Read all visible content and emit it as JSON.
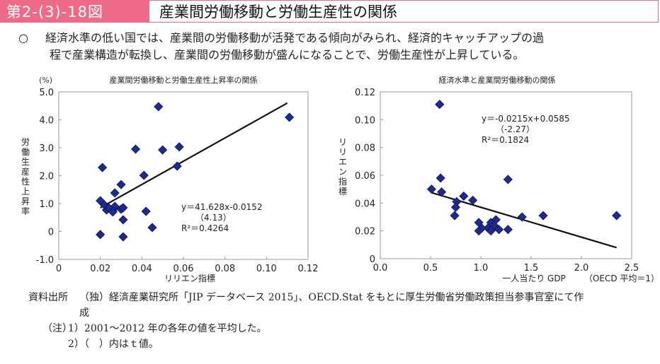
{
  "header": {
    "figure_number": "第2-(3)-18図",
    "title": "産業間労働移動と労働生産性の関係"
  },
  "lead": {
    "bullet": "○",
    "line1": "経済水準の低い国では、産業間の労働移動が活発である傾向がみられ、経済的キャッチアップの過",
    "line2": "程で産業構造が転換し、産業間の労働移動が盛んになることで、労働生産性が上昇している。"
  },
  "chart_data": [
    {
      "type": "scatter",
      "title": "産業間労働移動と労働生産性上昇率の関係",
      "xlabel": "リリエン指標",
      "ylabel": "労働生産性上昇率",
      "yunit": "(%)",
      "xlim": [
        0,
        0.12
      ],
      "ylim": [
        -1.0,
        5.0
      ],
      "xticks": [
        "0",
        "0.02",
        "0.04",
        "0.06",
        "0.08",
        "0.10",
        "0.12"
      ],
      "yticks": [
        "5.0",
        "4.0",
        "3.0",
        "2.0",
        "1.0",
        "0",
        "-1.0"
      ],
      "grid": false,
      "points": [
        [
          0.048,
          4.47
        ],
        [
          0.111,
          4.09
        ],
        [
          0.037,
          2.95
        ],
        [
          0.05,
          2.92
        ],
        [
          0.058,
          3.03
        ],
        [
          0.021,
          2.29
        ],
        [
          0.057,
          2.34
        ],
        [
          0.041,
          2.01
        ],
        [
          0.03,
          1.68
        ],
        [
          0.027,
          1.38
        ],
        [
          0.02,
          1.1
        ],
        [
          0.022,
          0.95
        ],
        [
          0.023,
          0.77
        ],
        [
          0.026,
          0.75
        ],
        [
          0.027,
          0.9
        ],
        [
          0.03,
          0.8
        ],
        [
          0.031,
          0.85
        ],
        [
          0.026,
          0.7
        ],
        [
          0.024,
          0.85
        ],
        [
          0.042,
          0.72
        ],
        [
          0.031,
          0.42
        ],
        [
          0.045,
          0.14
        ],
        [
          0.02,
          -0.11
        ],
        [
          0.031,
          -0.19
        ]
      ],
      "trendline": {
        "x": [
          0.02,
          0.11
        ],
        "y": [
          0.85,
          4.6
        ]
      },
      "annotation": {
        "equation": "y＝41.628x-0.0152",
        "tvalue": "（4.13）",
        "r2": "R²＝0.4264"
      },
      "marker_color": "#1f2a8a"
    },
    {
      "type": "scatter",
      "title": "経済水準と産業間労働移動の関係",
      "xlabel": "一人当たり GDP",
      "xnote": "（OECD 平均＝1）",
      "ylabel": "リリエン指標",
      "xlim": [
        0.0,
        2.5
      ],
      "ylim": [
        0,
        0.12
      ],
      "xticks": [
        "0.0",
        "0.5",
        "1.0",
        "1.5",
        "2.0",
        "2.5"
      ],
      "yticks": [
        "0.12",
        "0.10",
        "0.08",
        "0.06",
        "0.04",
        "0.02",
        "0"
      ],
      "grid": false,
      "points": [
        [
          0.59,
          0.111
        ],
        [
          0.6,
          0.058
        ],
        [
          1.27,
          0.057
        ],
        [
          0.51,
          0.05
        ],
        [
          0.61,
          0.048
        ],
        [
          0.83,
          0.045
        ],
        [
          0.76,
          0.041
        ],
        [
          0.92,
          0.042
        ],
        [
          0.75,
          0.037
        ],
        [
          0.74,
          0.031
        ],
        [
          0.98,
          0.026
        ],
        [
          1.1,
          0.026
        ],
        [
          1.15,
          0.028
        ],
        [
          1.13,
          0.024
        ],
        [
          1.07,
          0.022
        ],
        [
          1.01,
          0.022
        ],
        [
          0.98,
          0.02
        ],
        [
          1.1,
          0.02
        ],
        [
          1.18,
          0.021
        ],
        [
          1.27,
          0.021
        ],
        [
          1.41,
          0.03
        ],
        [
          1.62,
          0.031
        ],
        [
          2.35,
          0.031
        ]
      ],
      "trendline": {
        "x": [
          0.51,
          2.35
        ],
        "y": [
          0.0475,
          0.008
        ]
      },
      "annotation": {
        "equation": "y＝-0.0215x+0.0585",
        "tvalue": "（-2.27）",
        "r2": "R²＝0.1824"
      },
      "marker_color": "#1f2a8a"
    }
  ],
  "notes": {
    "source_label": "資料出所",
    "source_text": "（独）経済産業研究所「JIP データベース 2015」、OECD.Stat をもとに厚生労働省労働政策担当参事官室にて作",
    "source_text2": "成",
    "note_label": "（注）",
    "note1": "1）2001～2012 年の各年の値を平均した。",
    "note2": "2）（　）内はｔ値。"
  }
}
